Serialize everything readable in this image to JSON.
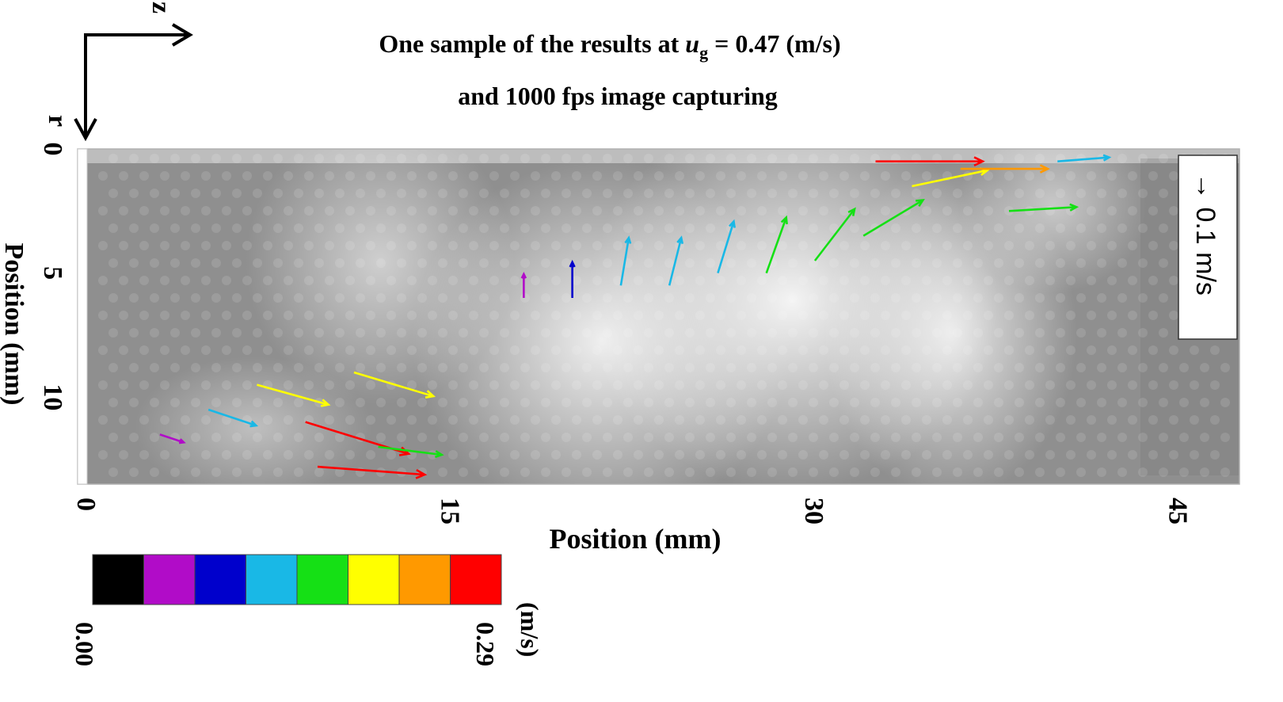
{
  "chart_data": {
    "type": "vector_field",
    "title_line1_prefix": "One sample of the results at ",
    "title_var": "u",
    "title_sub": "g",
    "title_line1_suffix": " = 0.47 (m/s)",
    "title_line2": "and 1000 fps image capturing",
    "xlabel": "Position (mm)",
    "ylabel": "Position (mm)",
    "xlim": [
      0,
      47.5
    ],
    "ylim": [
      0,
      13.5
    ],
    "x_ticks": [
      "0",
      "15",
      "30",
      "45"
    ],
    "x_tick_values": [
      0,
      15,
      30,
      45
    ],
    "y_ticks": [
      "0",
      "5",
      "10"
    ],
    "y_tick_values": [
      0,
      5,
      10
    ],
    "axes_indicator": {
      "z": "z",
      "r": "r"
    },
    "reference_vector_label": "→ 0.1 m/s",
    "reference_vector_value": 0.1,
    "colorbar": {
      "min_label": "0.00",
      "max_label": "0.29",
      "unit": "(m/s)",
      "min": 0.0,
      "max": 0.29,
      "colors": [
        "#000000",
        "#b10cc8",
        "#0000cc",
        "#19b8e6",
        "#15e015",
        "#ffff00",
        "#ff9900",
        "#ff0000"
      ]
    },
    "sample_vectors": [
      {
        "x": 3.0,
        "y": 11.5,
        "u": 0.06,
        "v": 0.02
      },
      {
        "x": 5.0,
        "y": 10.5,
        "u": 0.12,
        "v": 0.04
      },
      {
        "x": 7.0,
        "y": 9.5,
        "u": 0.18,
        "v": 0.05
      },
      {
        "x": 9.0,
        "y": 11.0,
        "u": 0.26,
        "v": 0.08
      },
      {
        "x": 9.5,
        "y": 12.8,
        "u": 0.27,
        "v": 0.02
      },
      {
        "x": 11.0,
        "y": 9.0,
        "u": 0.2,
        "v": 0.06
      },
      {
        "x": 12.0,
        "y": 12.0,
        "u": 0.16,
        "v": 0.02
      },
      {
        "x": 18.0,
        "y": 6.0,
        "u": 0.0,
        "v": -0.06
      },
      {
        "x": 20.0,
        "y": 6.0,
        "u": 0.0,
        "v": -0.09
      },
      {
        "x": 22.0,
        "y": 5.5,
        "u": 0.02,
        "v": -0.12
      },
      {
        "x": 24.0,
        "y": 5.5,
        "u": 0.03,
        "v": -0.12
      },
      {
        "x": 26.0,
        "y": 5.0,
        "u": 0.04,
        "v": -0.13
      },
      {
        "x": 28.0,
        "y": 5.0,
        "u": 0.05,
        "v": -0.14
      },
      {
        "x": 30.0,
        "y": 4.5,
        "u": 0.1,
        "v": -0.13
      },
      {
        "x": 32.0,
        "y": 3.5,
        "u": 0.15,
        "v": -0.09
      },
      {
        "x": 34.0,
        "y": 1.5,
        "u": 0.19,
        "v": -0.04
      },
      {
        "x": 32.5,
        "y": 0.5,
        "u": 0.27,
        "v": 0.0
      },
      {
        "x": 36.0,
        "y": 0.8,
        "u": 0.22,
        "v": 0.0
      },
      {
        "x": 38.0,
        "y": 2.5,
        "u": 0.17,
        "v": -0.01
      },
      {
        "x": 40.0,
        "y": 0.5,
        "u": 0.13,
        "v": -0.01
      }
    ]
  }
}
